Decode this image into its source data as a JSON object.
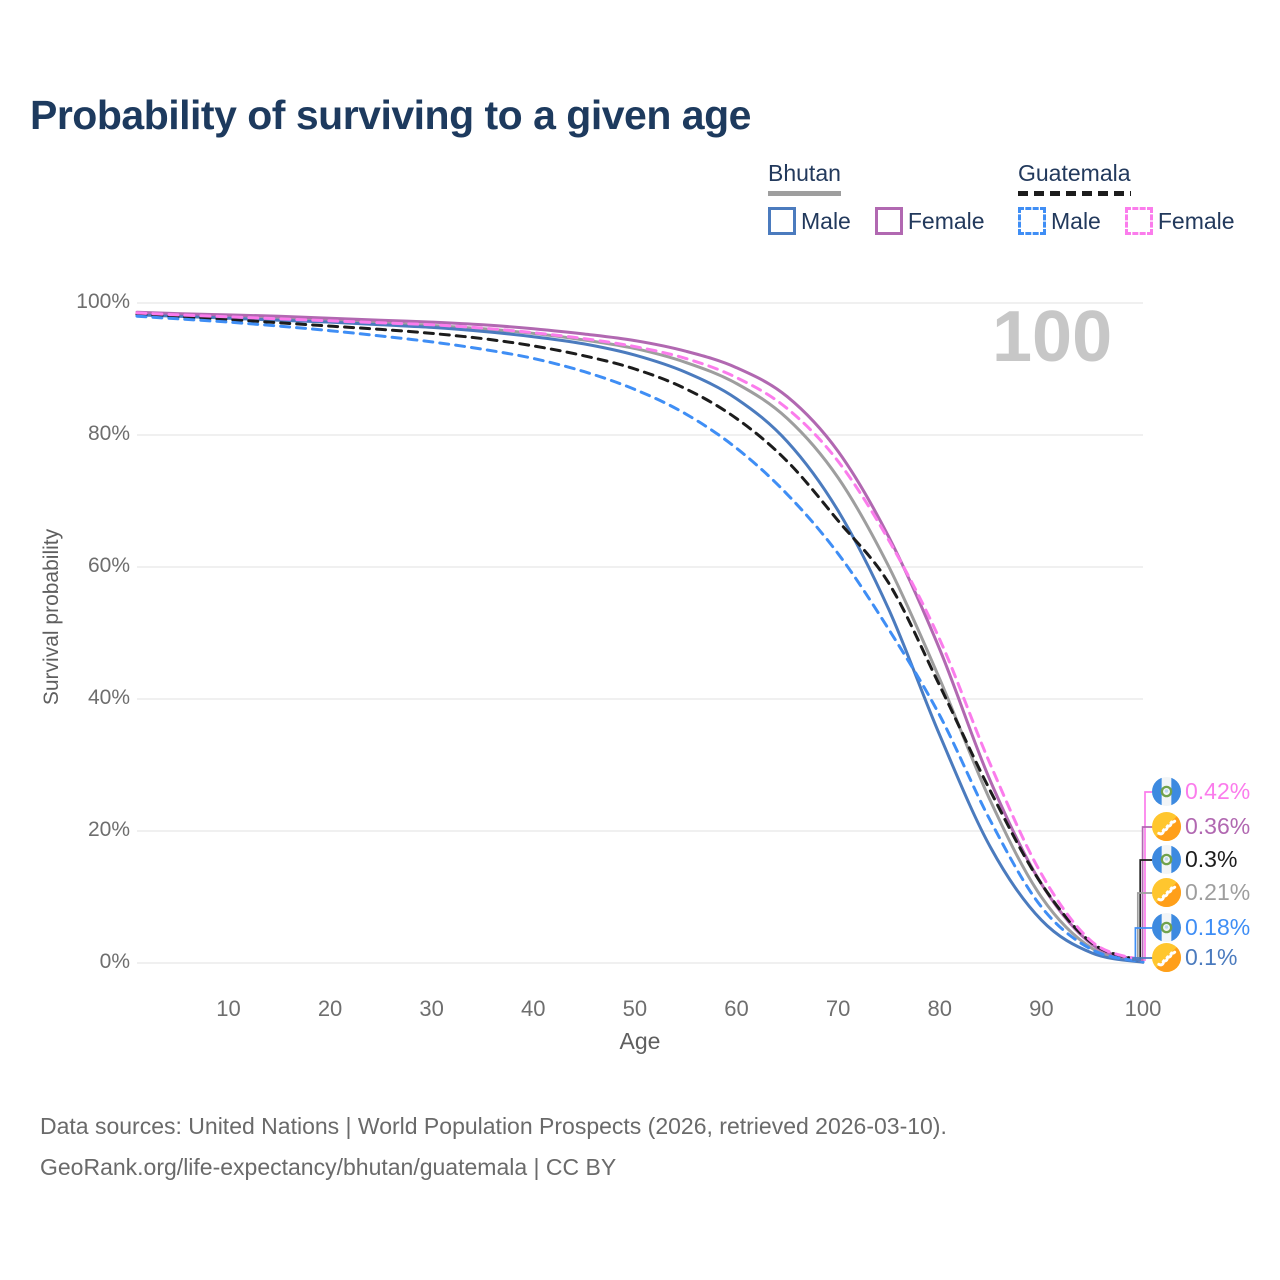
{
  "title": "Probability of surviving to a given age",
  "watermark": "100",
  "legend": {
    "groups": [
      {
        "country": "Bhutan",
        "line_style": "solid",
        "underline_color": "#9e9e9e",
        "items": [
          {
            "label": "Male",
            "color": "#4b7bbe",
            "style": "solid"
          },
          {
            "label": "Female",
            "color": "#b168b1",
            "style": "solid"
          }
        ]
      },
      {
        "country": "Guatemala",
        "line_style": "dashed",
        "underline_color": "#1c1c1c",
        "items": [
          {
            "label": "Male",
            "color": "#3f8ef5",
            "style": "dashed"
          },
          {
            "label": "Female",
            "color": "#fb7cec",
            "style": "dashed"
          }
        ]
      }
    ]
  },
  "chart_data": {
    "type": "line",
    "title": "Probability of surviving to a given age",
    "xlabel": "Age",
    "ylabel": "Survival probability",
    "xlim": [
      1,
      100
    ],
    "ylim": [
      0,
      100
    ],
    "x_ticks": [
      10,
      20,
      30,
      40,
      50,
      60,
      70,
      80,
      90,
      100
    ],
    "y_ticks": [
      {
        "value": 0,
        "label": "0%"
      },
      {
        "value": 20,
        "label": "20%"
      },
      {
        "value": 40,
        "label": "40%"
      },
      {
        "value": 60,
        "label": "60%"
      },
      {
        "value": 80,
        "label": "80%"
      },
      {
        "value": 100,
        "label": "100%"
      }
    ],
    "grid": "horizontal",
    "legend_position": "top-right",
    "x": [
      1,
      5,
      10,
      15,
      20,
      25,
      30,
      35,
      40,
      45,
      50,
      55,
      60,
      65,
      70,
      75,
      80,
      85,
      90,
      95,
      100
    ],
    "series": [
      {
        "name": "Bhutan All",
        "country": "bhutan",
        "sex": "all",
        "color": "#9e9e9e",
        "dashed": false,
        "values": [
          98.4,
          98.2,
          98.0,
          97.7,
          97.4,
          97.0,
          96.6,
          96.1,
          95.4,
          94.4,
          93.1,
          91.0,
          87.8,
          82.5,
          73.5,
          60.0,
          43.0,
          24.5,
          10.0,
          2.2,
          0.21
        ]
      },
      {
        "name": "Bhutan Male",
        "country": "bhutan",
        "sex": "male",
        "color": "#4b7bbe",
        "dashed": false,
        "values": [
          98.2,
          98.0,
          97.7,
          97.4,
          97.1,
          96.7,
          96.3,
          95.7,
          94.9,
          93.8,
          92.1,
          89.5,
          85.5,
          79.0,
          68.5,
          53.5,
          34.5,
          17.5,
          6.5,
          1.5,
          0.1
        ]
      },
      {
        "name": "Bhutan Female",
        "country": "bhutan",
        "sex": "female",
        "color": "#b168b1",
        "dashed": false,
        "values": [
          98.6,
          98.4,
          98.2,
          98.0,
          97.7,
          97.4,
          97.1,
          96.7,
          96.1,
          95.3,
          94.3,
          92.7,
          90.2,
          85.8,
          77.5,
          64.5,
          47.5,
          27.5,
          12.0,
          2.8,
          0.36
        ]
      },
      {
        "name": "Guatemala All",
        "country": "guatemala",
        "sex": "all",
        "color": "#1c1c1c",
        "dashed": true,
        "values": [
          98.3,
          97.9,
          97.5,
          97.0,
          96.5,
          96.0,
          95.4,
          94.6,
          93.5,
          92.0,
          90.0,
          87.0,
          82.5,
          76.0,
          67.0,
          57.5,
          42.0,
          26.0,
          12.0,
          3.0,
          0.3
        ]
      },
      {
        "name": "Guatemala Male",
        "country": "guatemala",
        "sex": "male",
        "color": "#3f8ef5",
        "dashed": true,
        "values": [
          98.0,
          97.6,
          97.1,
          96.5,
          95.8,
          95.0,
          94.1,
          93.0,
          91.6,
          89.6,
          86.9,
          83.2,
          78.0,
          71.0,
          62.0,
          50.5,
          37.5,
          21.5,
          8.5,
          2.0,
          0.18
        ]
      },
      {
        "name": "Guatemala Female",
        "country": "guatemala",
        "sex": "female",
        "color": "#fb7cec",
        "dashed": true,
        "values": [
          98.5,
          98.2,
          97.9,
          97.6,
          97.3,
          97.0,
          96.7,
          96.2,
          95.5,
          94.6,
          93.4,
          91.6,
          88.7,
          84.0,
          76.0,
          64.0,
          49.0,
          30.0,
          13.5,
          3.2,
          0.42
        ]
      }
    ],
    "end_labels": [
      {
        "flag": "guatemala",
        "text": "0.42%",
        "color": "#fb7cec"
      },
      {
        "flag": "bhutan",
        "text": "0.36%",
        "color": "#b168b1"
      },
      {
        "flag": "guatemala",
        "text": "0.3%",
        "color": "#1c1c1c"
      },
      {
        "flag": "bhutan",
        "text": "0.21%",
        "color": "#9e9e9e"
      },
      {
        "flag": "guatemala",
        "text": "0.18%",
        "color": "#3f8ef5"
      },
      {
        "flag": "bhutan",
        "text": "0.1%",
        "color": "#4b7bbe"
      }
    ]
  },
  "footer": {
    "line1": "Data sources: United Nations | World Population Prospects (2026, retrieved 2026-03-10).",
    "line2": "GeoRank.org/life-expectancy/bhutan/guatemala | CC BY"
  }
}
